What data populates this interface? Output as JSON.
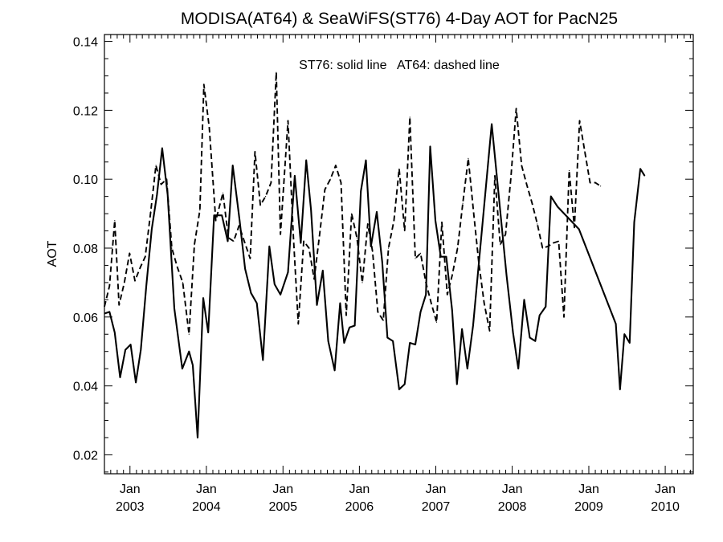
{
  "chart_data": {
    "type": "line",
    "title": "MODISA(AT64) & SeaWiFS(ST76) 4-Day AOT for PacN25",
    "ylabel": "AOT",
    "xlabel": "",
    "annotation": "ST76: solid line   AT64: dashed line",
    "xlim": [
      "2002-09-01",
      "2010-05-15"
    ],
    "ylim": [
      0.0145,
      0.142
    ],
    "y_ticks": [
      0.02,
      0.04,
      0.06,
      0.08,
      0.1,
      0.12,
      0.14
    ],
    "y_tick_labels": [
      "0.02",
      "0.04",
      "0.06",
      "0.08",
      "0.10",
      "0.12",
      "0.14"
    ],
    "x_ticks": [
      {
        "date": "2003-01-01",
        "month": "Jan",
        "year": "2003"
      },
      {
        "date": "2004-01-01",
        "month": "Jan",
        "year": "2004"
      },
      {
        "date": "2005-01-01",
        "month": "Jan",
        "year": "2005"
      },
      {
        "date": "2006-01-01",
        "month": "Jan",
        "year": "2006"
      },
      {
        "date": "2007-01-01",
        "month": "Jan",
        "year": "2007"
      },
      {
        "date": "2008-01-01",
        "month": "Jan",
        "year": "2008"
      },
      {
        "date": "2009-01-01",
        "month": "Jan",
        "year": "2009"
      },
      {
        "date": "2010-01-01",
        "month": "Jan",
        "year": "2010"
      }
    ],
    "grid": false,
    "series": [
      {
        "name": "ST76",
        "style": "solid",
        "color": "#000000",
        "points": [
          [
            "2002-09-01",
            0.061
          ],
          [
            "2002-09-25",
            0.0615
          ],
          [
            "2002-10-20",
            0.0555
          ],
          [
            "2002-11-15",
            0.0425
          ],
          [
            "2002-12-10",
            0.0505
          ],
          [
            "2003-01-04",
            0.052
          ],
          [
            "2003-01-29",
            0.041
          ],
          [
            "2003-02-22",
            0.0505
          ],
          [
            "2003-03-20",
            0.069
          ],
          [
            "2003-04-15",
            0.0855
          ],
          [
            "2003-05-10",
            0.0955
          ],
          [
            "2003-06-04",
            0.109
          ],
          [
            "2003-06-30",
            0.0955
          ],
          [
            "2003-08-01",
            0.0625
          ],
          [
            "2003-09-08",
            0.045
          ],
          [
            "2003-10-10",
            0.05
          ],
          [
            "2003-10-28",
            0.046
          ],
          [
            "2003-11-20",
            0.025
          ],
          [
            "2003-12-17",
            0.0655
          ],
          [
            "2004-01-10",
            0.0555
          ],
          [
            "2004-02-07",
            0.0895
          ],
          [
            "2004-03-15",
            0.0895
          ],
          [
            "2004-04-12",
            0.082
          ],
          [
            "2004-05-06",
            0.104
          ],
          [
            "2004-06-08",
            0.088
          ],
          [
            "2004-07-04",
            0.074
          ],
          [
            "2004-08-01",
            0.067
          ],
          [
            "2004-08-29",
            0.064
          ],
          [
            "2004-09-27",
            0.0475
          ],
          [
            "2004-10-28",
            0.0805
          ],
          [
            "2004-11-22",
            0.0695
          ],
          [
            "2004-12-20",
            0.0665
          ],
          [
            "2005-01-25",
            0.073
          ],
          [
            "2005-02-26",
            0.101
          ],
          [
            "2005-03-27",
            0.0815
          ],
          [
            "2005-04-22",
            0.1055
          ],
          [
            "2005-05-15",
            0.091
          ],
          [
            "2005-06-12",
            0.0635
          ],
          [
            "2005-07-10",
            0.0735
          ],
          [
            "2005-08-05",
            0.053
          ],
          [
            "2005-09-05",
            0.0445
          ],
          [
            "2005-10-01",
            0.064
          ],
          [
            "2005-10-20",
            0.0525
          ],
          [
            "2005-11-15",
            0.057
          ],
          [
            "2005-12-10",
            0.0575
          ],
          [
            "2006-01-08",
            0.0965
          ],
          [
            "2006-02-01",
            0.1055
          ],
          [
            "2006-02-25",
            0.0805
          ],
          [
            "2006-03-25",
            0.0905
          ],
          [
            "2006-04-20",
            0.076
          ],
          [
            "2006-05-15",
            0.054
          ],
          [
            "2006-06-10",
            0.053
          ],
          [
            "2006-07-10",
            0.039
          ],
          [
            "2006-08-05",
            0.0405
          ],
          [
            "2006-08-30",
            0.0525
          ],
          [
            "2006-09-25",
            0.052
          ],
          [
            "2006-10-20",
            0.0615
          ],
          [
            "2006-11-15",
            0.0665
          ],
          [
            "2006-12-05",
            0.1095
          ],
          [
            "2006-12-30",
            0.088
          ],
          [
            "2007-01-25",
            0.0775
          ],
          [
            "2007-02-20",
            0.0775
          ],
          [
            "2007-03-20",
            0.062
          ],
          [
            "2007-04-12",
            0.0405
          ],
          [
            "2007-05-06",
            0.0565
          ],
          [
            "2007-06-01",
            0.045
          ],
          [
            "2007-06-28",
            0.0575
          ],
          [
            "2007-09-25",
            0.116
          ],
          [
            "2007-12-05",
            0.072
          ],
          [
            "2008-01-05",
            0.0555
          ],
          [
            "2008-01-30",
            0.045
          ],
          [
            "2008-02-27",
            0.065
          ],
          [
            "2008-03-25",
            0.054
          ],
          [
            "2008-04-20",
            0.053
          ],
          [
            "2008-05-11",
            0.0605
          ],
          [
            "2008-06-09",
            0.063
          ],
          [
            "2008-07-04",
            0.095
          ],
          [
            "2008-08-05",
            0.092
          ],
          [
            "2008-11-15",
            0.0855
          ],
          [
            "2009-05-10",
            0.058
          ],
          [
            "2009-05-30",
            0.039
          ],
          [
            "2009-06-20",
            0.055
          ],
          [
            "2009-07-15",
            0.0525
          ],
          [
            "2009-08-06",
            0.0875
          ],
          [
            "2009-09-04",
            0.103
          ],
          [
            "2009-09-25",
            0.101
          ]
        ]
      },
      {
        "name": "AT64",
        "style": "dashed",
        "color": "#000000",
        "points": [
          [
            "2002-09-01",
            0.063
          ],
          [
            "2002-09-25",
            0.069
          ],
          [
            "2002-10-20",
            0.088
          ],
          [
            "2002-11-10",
            0.0635
          ],
          [
            "2002-12-05",
            0.07
          ],
          [
            "2002-12-30",
            0.0785
          ],
          [
            "2003-01-25",
            0.0705
          ],
          [
            "2003-02-20",
            0.0745
          ],
          [
            "2003-03-15",
            0.0775
          ],
          [
            "2003-04-10",
            0.0905
          ],
          [
            "2003-05-05",
            0.104
          ],
          [
            "2003-05-30",
            0.0985
          ],
          [
            "2003-06-25",
            0.1
          ],
          [
            "2003-07-20",
            0.08
          ],
          [
            "2003-08-15",
            0.0745
          ],
          [
            "2003-09-10",
            0.07
          ],
          [
            "2003-10-10",
            0.055
          ],
          [
            "2003-11-05",
            0.081
          ],
          [
            "2003-12-01",
            0.091
          ],
          [
            "2003-12-20",
            0.1275
          ],
          [
            "2004-01-15",
            0.115
          ],
          [
            "2004-02-15",
            0.088
          ],
          [
            "2004-03-20",
            0.096
          ],
          [
            "2004-04-15",
            0.083
          ],
          [
            "2004-05-10",
            0.082
          ],
          [
            "2004-06-05",
            0.0865
          ],
          [
            "2004-06-30",
            0.082
          ],
          [
            "2004-07-28",
            0.077
          ],
          [
            "2004-08-20",
            0.108
          ],
          [
            "2004-09-15",
            0.0925
          ],
          [
            "2004-10-10",
            0.095
          ],
          [
            "2004-11-05",
            0.099
          ],
          [
            "2004-11-30",
            0.131
          ],
          [
            "2004-12-20",
            0.084
          ],
          [
            "2005-01-25",
            0.117
          ],
          [
            "2005-02-20",
            0.083
          ],
          [
            "2005-03-15",
            0.058
          ],
          [
            "2005-04-10",
            0.082
          ],
          [
            "2005-05-05",
            0.08
          ],
          [
            "2005-05-30",
            0.071
          ],
          [
            "2005-06-25",
            0.084
          ],
          [
            "2005-07-20",
            0.097
          ],
          [
            "2005-08-15",
            0.1
          ],
          [
            "2005-09-10",
            0.104
          ],
          [
            "2005-10-05",
            0.099
          ],
          [
            "2005-10-30",
            0.0605
          ],
          [
            "2005-11-25",
            0.09
          ],
          [
            "2005-12-20",
            0.083
          ],
          [
            "2006-01-15",
            0.07
          ],
          [
            "2006-02-10",
            0.087
          ],
          [
            "2006-03-05",
            0.079
          ],
          [
            "2006-03-30",
            0.0615
          ],
          [
            "2006-04-25",
            0.059
          ],
          [
            "2006-05-20",
            0.08
          ],
          [
            "2006-06-15",
            0.088
          ],
          [
            "2006-07-10",
            0.103
          ],
          [
            "2006-08-05",
            0.085
          ],
          [
            "2006-08-30",
            0.118
          ],
          [
            "2006-09-25",
            0.077
          ],
          [
            "2006-10-20",
            0.0785
          ],
          [
            "2006-11-15",
            0.07
          ],
          [
            "2006-12-10",
            0.064
          ],
          [
            "2007-01-05",
            0.0585
          ],
          [
            "2007-01-30",
            0.0875
          ],
          [
            "2007-02-25",
            0.0665
          ],
          [
            "2007-03-20",
            0.072
          ],
          [
            "2007-04-15",
            0.08
          ],
          [
            "2007-05-10",
            0.093
          ],
          [
            "2007-06-05",
            0.106
          ],
          [
            "2007-07-01",
            0.09
          ],
          [
            "2007-07-25",
            0.076
          ],
          [
            "2007-08-20",
            0.064
          ],
          [
            "2007-09-15",
            0.056
          ],
          [
            "2007-10-10",
            0.101
          ],
          [
            "2007-11-05",
            0.081
          ],
          [
            "2007-11-30",
            0.084
          ],
          [
            "2007-12-25",
            0.1
          ],
          [
            "2008-01-20",
            0.1205
          ],
          [
            "2008-02-15",
            0.104
          ],
          [
            "2008-03-10",
            0.0985
          ],
          [
            "2008-04-05",
            0.093
          ],
          [
            "2008-04-30",
            0.087
          ],
          [
            "2008-05-25",
            0.08
          ],
          [
            "2008-06-20",
            0.0805
          ],
          [
            "2008-07-15",
            0.0815
          ],
          [
            "2008-08-10",
            0.082
          ],
          [
            "2008-09-04",
            0.06
          ],
          [
            "2008-09-29",
            0.1025
          ],
          [
            "2008-10-24",
            0.086
          ],
          [
            "2008-11-18",
            0.117
          ],
          [
            "2008-12-13",
            0.108
          ],
          [
            "2009-01-07",
            0.099
          ],
          [
            "2009-02-01",
            0.099
          ],
          [
            "2009-02-26",
            0.098
          ]
        ]
      }
    ]
  }
}
